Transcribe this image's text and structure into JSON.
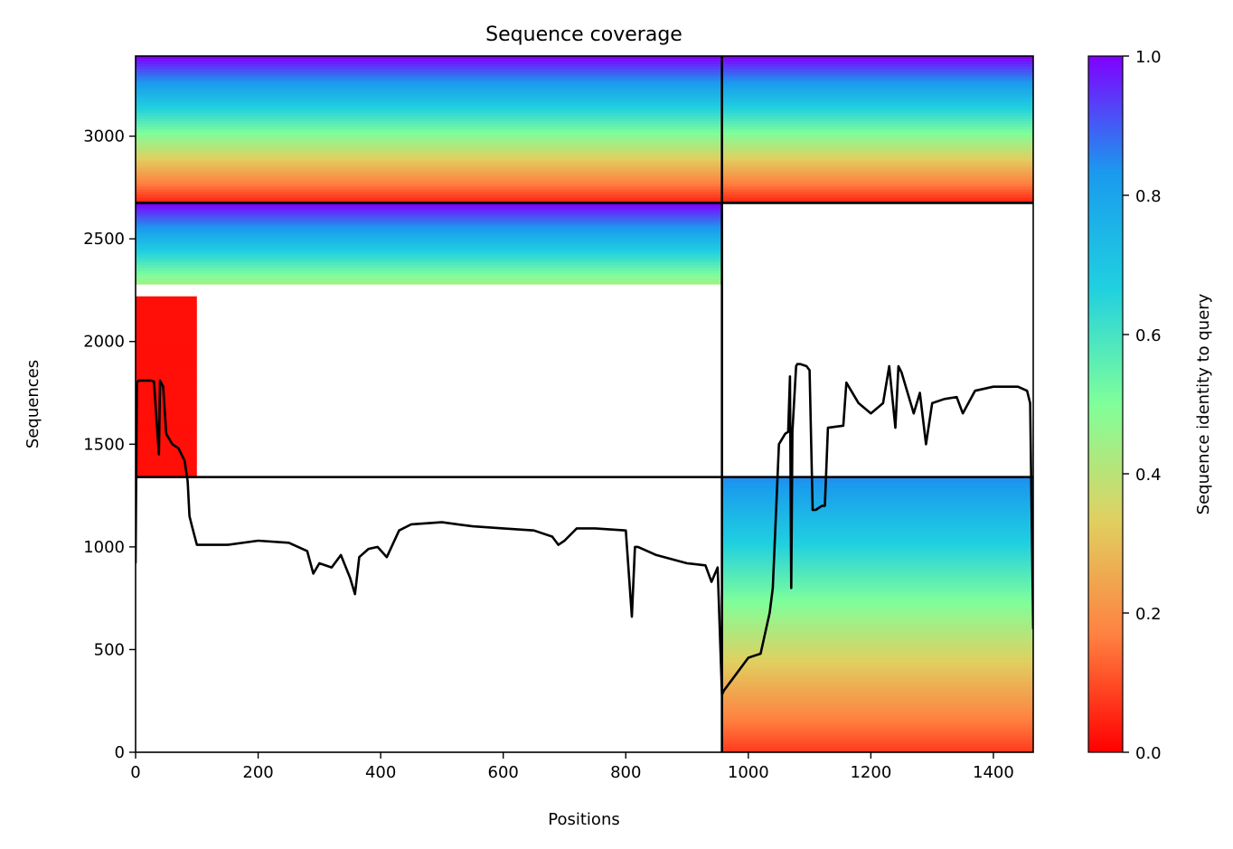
{
  "chart_data": {
    "type": "heatmap",
    "title": "Sequence coverage",
    "xlabel": "Positions",
    "ylabel": "Sequences",
    "xlim": [
      0,
      1465
    ],
    "ylim": [
      0,
      3390
    ],
    "x_ticks": [
      0,
      200,
      400,
      600,
      800,
      1000,
      1200,
      1400
    ],
    "y_ticks": [
      0,
      500,
      1000,
      1500,
      2000,
      2500,
      3000
    ],
    "colorbar": {
      "label": "Sequence identity to query",
      "colormap": "rainbow",
      "range": [
        0,
        1
      ],
      "ticks": [
        "0.0",
        "0.2",
        "0.4",
        "0.6",
        "0.8",
        "1.0"
      ],
      "stops": [
        "#ff0000",
        "#ff8040",
        "#e0d060",
        "#80ff9a",
        "#20d0e0",
        "#1a9aee",
        "#8000ff"
      ]
    },
    "chain_boundaries": {
      "x": [
        957
      ],
      "y": [
        1340,
        2675
      ]
    },
    "blocks": [
      {
        "x": [
          0,
          957
        ],
        "y": [
          2675,
          3390
        ],
        "identity_top": 1.0,
        "identity_bottom": 0.05
      },
      {
        "x": [
          957,
          1465
        ],
        "y": [
          2675,
          3390
        ],
        "identity_top": 1.0,
        "identity_bottom": 0.05
      },
      {
        "x": [
          0,
          957
        ],
        "y": [
          2280,
          2675
        ],
        "identity_top": 1.0,
        "identity_bottom": 0.45
      },
      {
        "x": [
          0,
          100
        ],
        "y": [
          1340,
          2220
        ],
        "identity_top": 0.02,
        "identity_bottom": 0.02
      },
      {
        "x": [
          957,
          1465
        ],
        "y": [
          0,
          1340
        ],
        "identity_top": 0.85,
        "identity_bottom": 0.08
      }
    ],
    "coverage_line": {
      "name": "coverage",
      "x": [
        0,
        2,
        5,
        10,
        25,
        30,
        38,
        40,
        45,
        50,
        60,
        70,
        80,
        85,
        88,
        92,
        100,
        150,
        200,
        250,
        280,
        290,
        300,
        320,
        335,
        350,
        358,
        365,
        380,
        395,
        410,
        430,
        450,
        500,
        550,
        600,
        650,
        680,
        690,
        700,
        720,
        750,
        800,
        810,
        815,
        820,
        850,
        900,
        930,
        940,
        950,
        957,
        960,
        980,
        1000,
        1010,
        1020,
        1035,
        1040,
        1050,
        1060,
        1065,
        1068,
        1070,
        1072,
        1078,
        1080,
        1085,
        1095,
        1100,
        1105,
        1110,
        1120,
        1125,
        1130,
        1155,
        1160,
        1180,
        1200,
        1220,
        1230,
        1240,
        1245,
        1250,
        1270,
        1280,
        1290,
        1300,
        1320,
        1340,
        1350,
        1370,
        1400,
        1440,
        1455,
        1460,
        1465
      ],
      "y": [
        920,
        1800,
        1810,
        1810,
        1810,
        1805,
        1450,
        1810,
        1780,
        1550,
        1500,
        1480,
        1420,
        1320,
        1150,
        1100,
        1010,
        1010,
        1030,
        1020,
        980,
        870,
        920,
        900,
        960,
        850,
        770,
        950,
        990,
        1000,
        950,
        1080,
        1110,
        1120,
        1100,
        1090,
        1080,
        1050,
        1010,
        1030,
        1090,
        1090,
        1080,
        660,
        1000,
        1000,
        960,
        920,
        910,
        830,
        900,
        280,
        300,
        380,
        460,
        470,
        480,
        680,
        800,
        1500,
        1550,
        1560,
        1830,
        800,
        1560,
        1880,
        1890,
        1890,
        1880,
        1860,
        1180,
        1180,
        1200,
        1200,
        1580,
        1590,
        1800,
        1700,
        1650,
        1700,
        1880,
        1580,
        1880,
        1850,
        1650,
        1750,
        1500,
        1700,
        1720,
        1730,
        1650,
        1760,
        1780,
        1780,
        1760,
        1700,
        600
      ]
    }
  }
}
